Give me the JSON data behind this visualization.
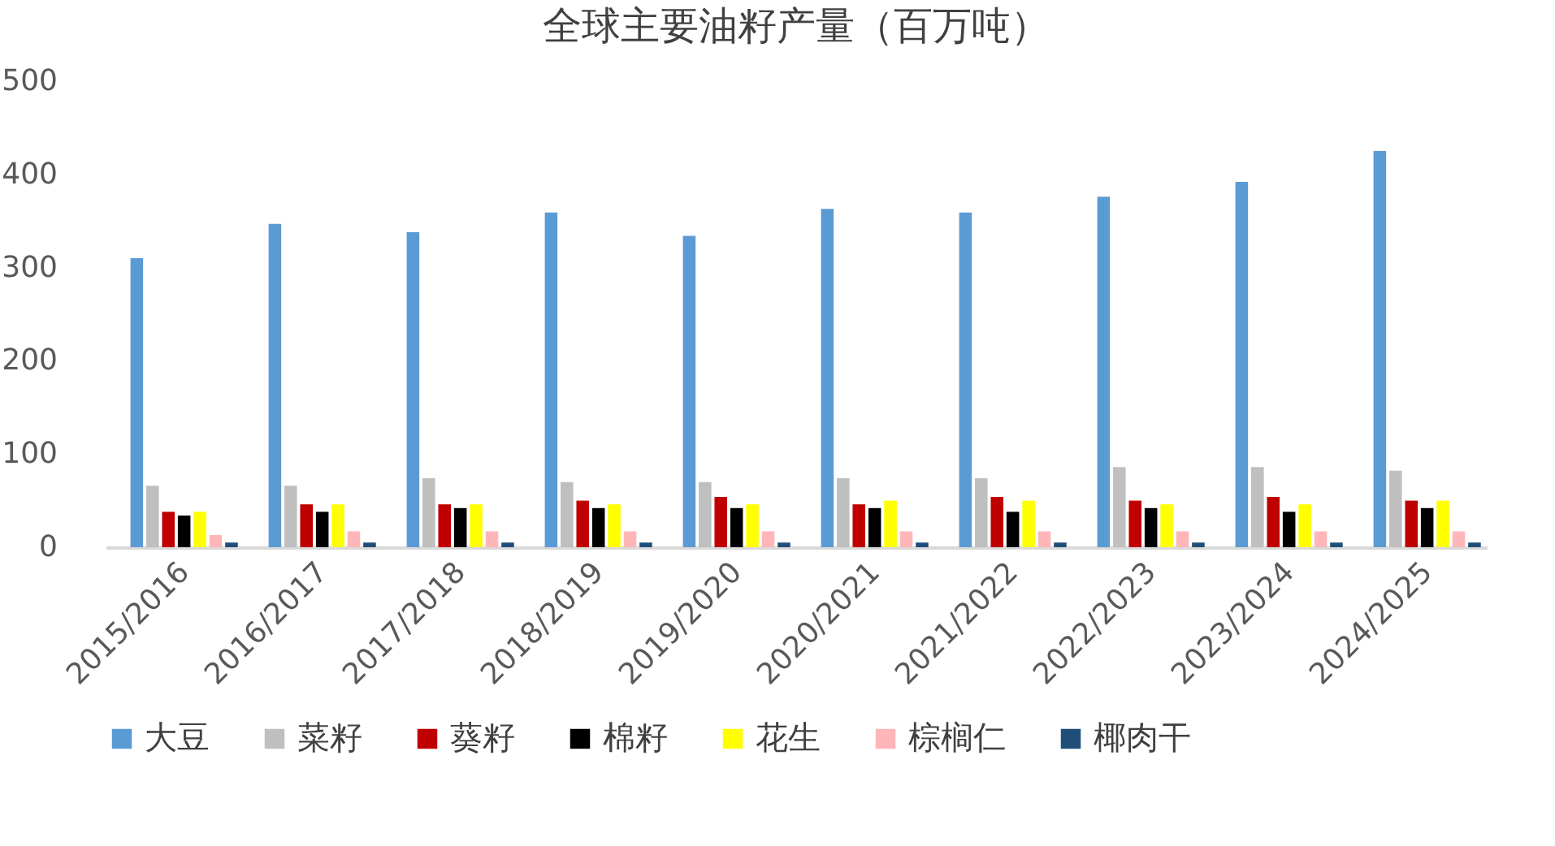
{
  "chart_data": {
    "type": "bar",
    "title": "全球主要油籽产量（百万吨）",
    "categories": [
      "2015/2016",
      "2016/2017",
      "2017/2018",
      "2018/2019",
      "2019/2020",
      "2020/2021",
      "2021/2022",
      "2022/2023",
      "2023/2024",
      "2024/2025"
    ],
    "series": [
      {
        "name": "大豆",
        "color": "#5b9bd5",
        "values": [
          310,
          347,
          338,
          359,
          334,
          363,
          359,
          376,
          392,
          425
        ]
      },
      {
        "name": "菜籽",
        "color": "#bfbfbf",
        "values": [
          66,
          66,
          74,
          70,
          70,
          74,
          74,
          86,
          86,
          82
        ]
      },
      {
        "name": "葵籽",
        "color": "#c00000",
        "values": [
          38,
          46,
          46,
          50,
          54,
          46,
          54,
          50,
          54,
          50
        ]
      },
      {
        "name": "棉籽",
        "color": "#000000",
        "values": [
          34,
          38,
          42,
          42,
          42,
          42,
          38,
          42,
          38,
          42
        ]
      },
      {
        "name": "花生",
        "color": "#ffff00",
        "values": [
          38,
          46,
          46,
          46,
          46,
          50,
          50,
          46,
          46,
          50
        ]
      },
      {
        "name": "棕榈仁",
        "color": "#ffb6b9",
        "values": [
          13,
          17,
          17,
          17,
          17,
          17,
          17,
          17,
          17,
          17
        ]
      },
      {
        "name": "椰肉干",
        "color": "#1f4e79",
        "values": [
          5,
          5,
          5,
          5,
          5,
          5,
          5,
          5,
          5,
          5
        ]
      }
    ],
    "ylim": [
      0,
      500
    ],
    "yticks": [
      0,
      100,
      200,
      300,
      400,
      500
    ],
    "grid": false,
    "legend": "bottom"
  }
}
